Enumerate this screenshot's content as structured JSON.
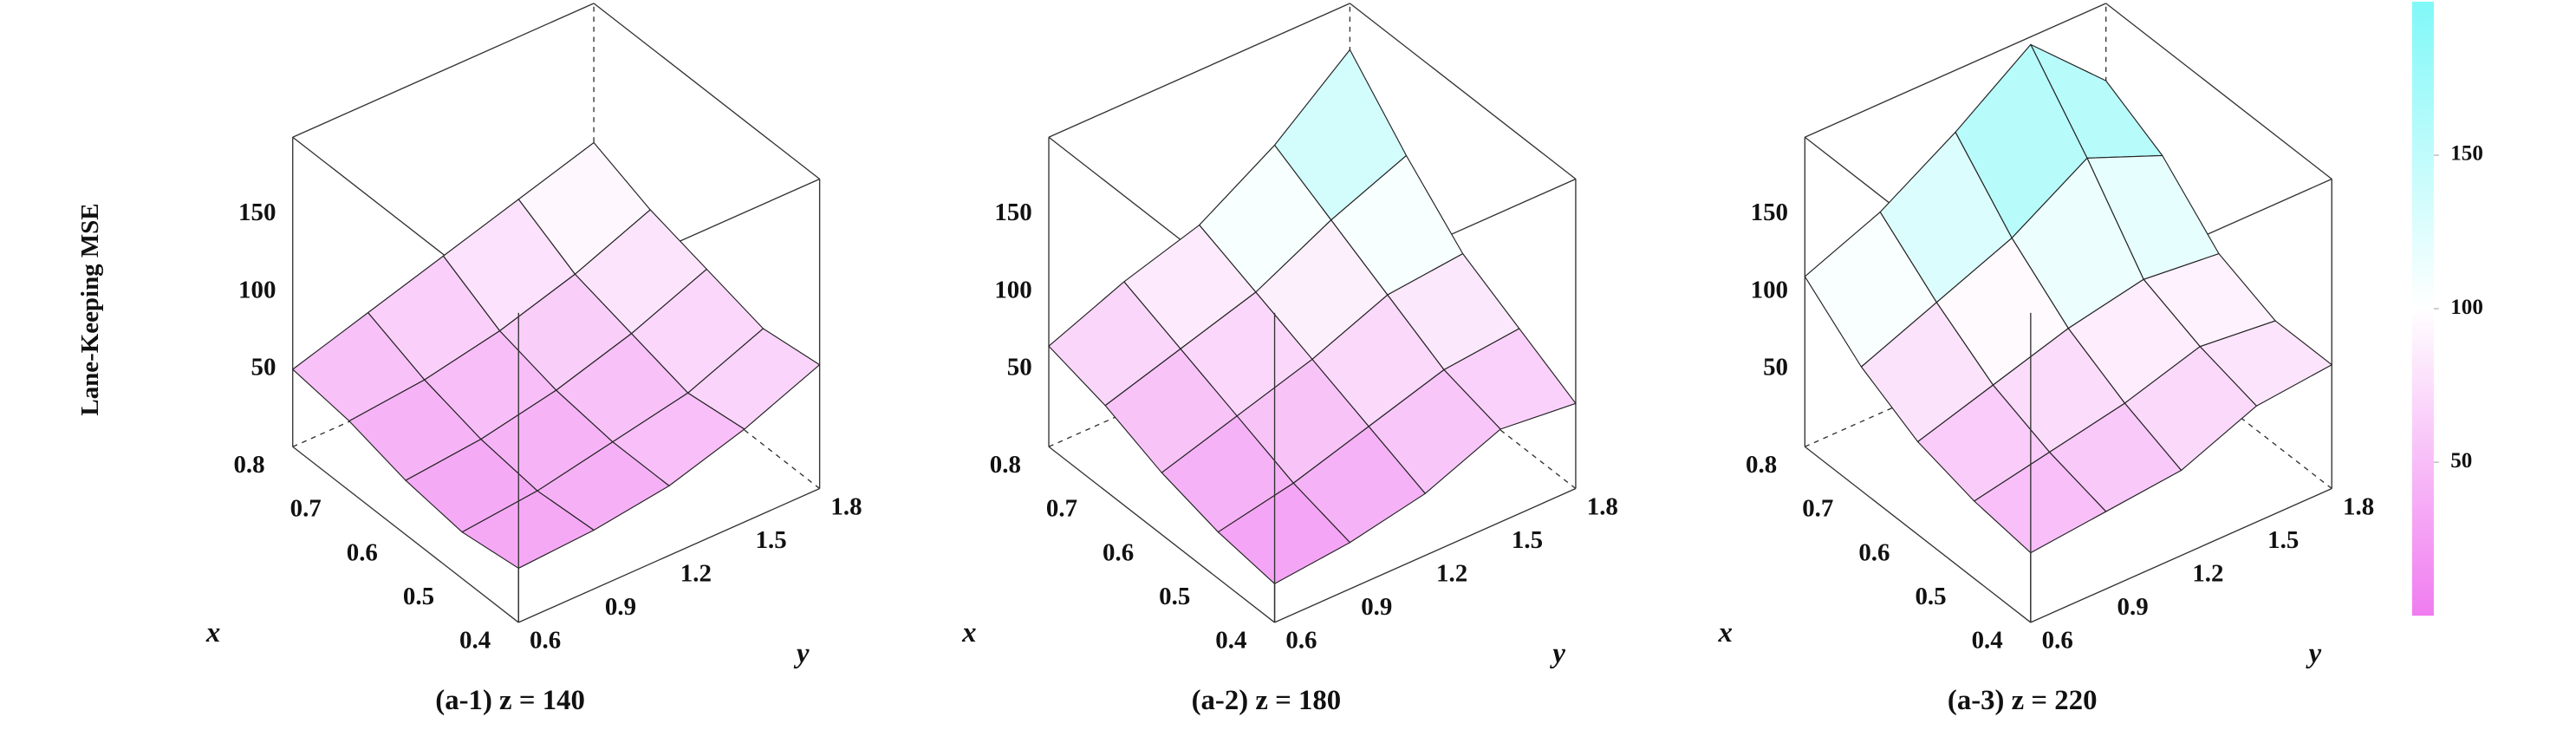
{
  "chart_data": [
    {
      "type": "surface3d",
      "title": "(a-1) z = 140",
      "zlabel": "Lane-Keeping MSE",
      "xlabel": "x",
      "ylabel": "y",
      "x": [
        0.4,
        0.5,
        0.6,
        0.7,
        0.8
      ],
      "y": [
        0.6,
        0.9,
        1.2,
        1.5,
        1.8
      ],
      "z": [
        [
          35,
          38,
          45,
          60,
          80
        ],
        [
          30,
          35,
          45,
          55,
          75
        ],
        [
          35,
          40,
          50,
          65,
          85
        ],
        [
          45,
          50,
          60,
          75,
          95
        ],
        [
          50,
          65,
          80,
          95,
          110
        ]
      ],
      "xlim": [
        0.4,
        0.8
      ],
      "ylim": [
        0.6,
        1.8
      ],
      "zlim": [
        0,
        200
      ],
      "xticks": [
        0.4,
        0.5,
        0.6,
        0.7,
        0.8
      ],
      "yticks": [
        0.6,
        0.9,
        1.2,
        1.5,
        1.8
      ],
      "zticks": [
        50,
        100,
        150
      ]
    },
    {
      "type": "surface3d",
      "title": "(a-2) z = 180",
      "xlabel": "x",
      "ylabel": "y",
      "x": [
        0.4,
        0.5,
        0.6,
        0.7,
        0.8
      ],
      "y": [
        0.6,
        0.9,
        1.2,
        1.5,
        1.8
      ],
      "z": [
        [
          25,
          30,
          40,
          60,
          55
        ],
        [
          30,
          40,
          55,
          70,
          75
        ],
        [
          40,
          55,
          70,
          90,
          95
        ],
        [
          55,
          70,
          85,
          110,
          130
        ],
        [
          65,
          85,
          100,
          130,
          170
        ]
      ],
      "xlim": [
        0.4,
        0.8
      ],
      "ylim": [
        0.6,
        1.8
      ],
      "zlim": [
        0,
        200
      ],
      "xticks": [
        0.4,
        0.5,
        0.6,
        0.7,
        0.8
      ],
      "yticks": [
        0.6,
        0.9,
        1.2,
        1.5,
        1.8
      ],
      "zticks": [
        50,
        100,
        150
      ]
    },
    {
      "type": "surface3d",
      "title": "(a-3) z = 220",
      "xlabel": "x",
      "ylabel": "y",
      "x": [
        0.4,
        0.5,
        0.6,
        0.7,
        0.8
      ],
      "y": [
        0.6,
        0.9,
        1.2,
        1.5,
        1.8
      ],
      "z": [
        [
          45,
          50,
          55,
          75,
          80
        ],
        [
          50,
          60,
          70,
          85,
          80
        ],
        [
          60,
          75,
          90,
          100,
          95
        ],
        [
          80,
          100,
          120,
          150,
          130
        ],
        [
          110,
          130,
          160,
          195,
          150
        ]
      ],
      "xlim": [
        0.4,
        0.8
      ],
      "ylim": [
        0.6,
        1.8
      ],
      "zlim": [
        0,
        200
      ],
      "xticks": [
        0.4,
        0.5,
        0.6,
        0.7,
        0.8
      ],
      "yticks": [
        0.6,
        0.9,
        1.2,
        1.5,
        1.8
      ],
      "zticks": [
        50,
        100,
        150
      ],
      "colorbar": {
        "lim": [
          0,
          200
        ],
        "ticks": [
          50,
          100,
          150
        ],
        "colors": [
          "#f07cf0",
          "#ffffff",
          "#80f8f8"
        ]
      }
    }
  ]
}
